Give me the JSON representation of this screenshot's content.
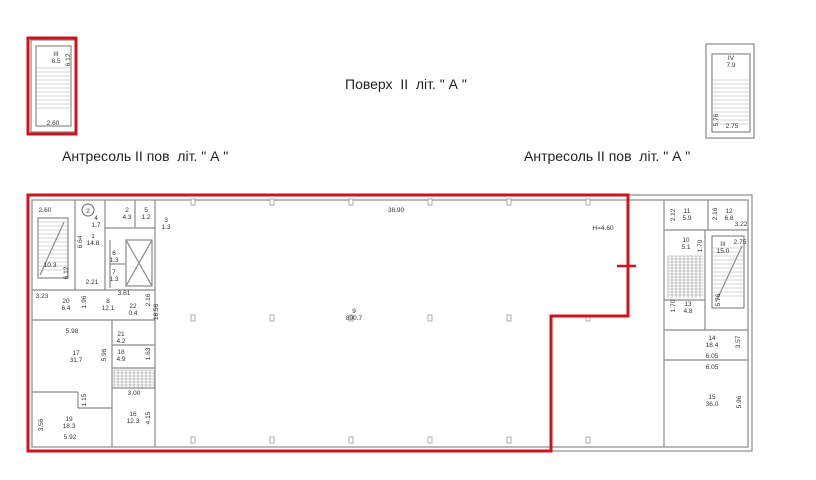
{
  "titles": {
    "floor": "Поверх  II  літ. \" А \"",
    "mezzanine_left": "Антресоль II пов  літ. \" А \"",
    "mezzanine_right": "Антресоль II пов  літ. \" А \""
  },
  "colors": {
    "highlight": "#d0121b",
    "walls": "#8a8a8a"
  },
  "stair_blocks": [
    {
      "num": "III",
      "area": "8.5",
      "dims": [
        "6.12",
        "2.60"
      ]
    },
    {
      "num": "IV",
      "area": "7.9",
      "dims": [
        "5.76",
        "2.75"
      ]
    }
  ],
  "marker": "2",
  "height_label": "H=4.60",
  "rooms": [
    {
      "num": "1",
      "area": "14.8"
    },
    {
      "num": "2",
      "area": "4.3"
    },
    {
      "num": "3",
      "area": "1.3"
    },
    {
      "num": "4",
      "area": "1.7"
    },
    {
      "num": "5",
      "area": "1.2"
    },
    {
      "num": "6",
      "area": "1.3"
    },
    {
      "num": "7",
      "area": "1.3"
    },
    {
      "num": "8",
      "area": "12.1"
    },
    {
      "num": "9",
      "area": "890.7"
    },
    {
      "num": "10",
      "area": "5.1"
    },
    {
      "num": "11",
      "area": "5.9"
    },
    {
      "num": "12",
      "area": "6.8"
    },
    {
      "num": "13",
      "area": "4.8"
    },
    {
      "num": "14",
      "area": "18.4"
    },
    {
      "num": "15",
      "area": "36.0"
    },
    {
      "num": "16",
      "area": "12.3"
    },
    {
      "num": "17",
      "area": "31.7"
    },
    {
      "num": "18",
      "area": "4.9"
    },
    {
      "num": "19",
      "area": "18.3"
    },
    {
      "num": "20",
      "area": "6.4"
    },
    {
      "num": "21",
      "area": "4.2"
    },
    {
      "num": "22",
      "area": "0.4"
    },
    {
      "num": "",
      "area": "10.3"
    },
    {
      "num": "III",
      "area": "15.0"
    }
  ],
  "dimensions": [
    "2.60",
    "6.12",
    "6.64",
    "2.21",
    "3.23",
    "1.96",
    "3.61",
    "2.16",
    "18.56",
    "5.98",
    "5.96",
    "1.63",
    "3.00",
    "1.15",
    "3.56",
    "5.92",
    "4.15",
    "38.90",
    "2.12",
    "2.16",
    "3.22",
    "1.70",
    "2.75",
    "5.76",
    "1.70",
    "3.57",
    "6.05",
    "6.05",
    "5.96"
  ]
}
